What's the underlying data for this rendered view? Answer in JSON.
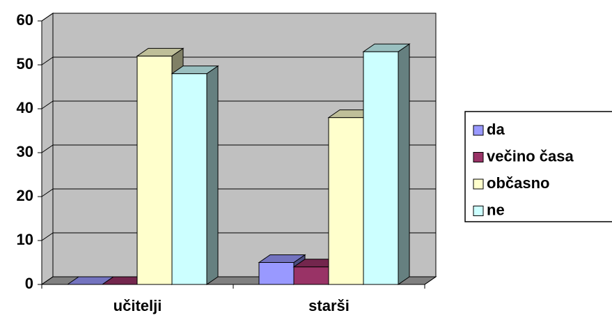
{
  "chart_data": {
    "type": "bar3d",
    "categories": [
      "učitelji",
      "starši"
    ],
    "series": [
      {
        "name": "da",
        "color": "#9999ff",
        "values": [
          0,
          5
        ]
      },
      {
        "name": "večino časa",
        "color": "#993366",
        "values": [
          0,
          4
        ]
      },
      {
        "name": "občasno",
        "color": "#ffffcc",
        "values": [
          52,
          38
        ]
      },
      {
        "name": "ne",
        "color": "#ccffff",
        "values": [
          48,
          53
        ]
      }
    ],
    "ylim": [
      0,
      60
    ],
    "yticks": [
      0,
      10,
      20,
      30,
      40,
      50,
      60
    ],
    "grid": true,
    "legend": "right"
  }
}
